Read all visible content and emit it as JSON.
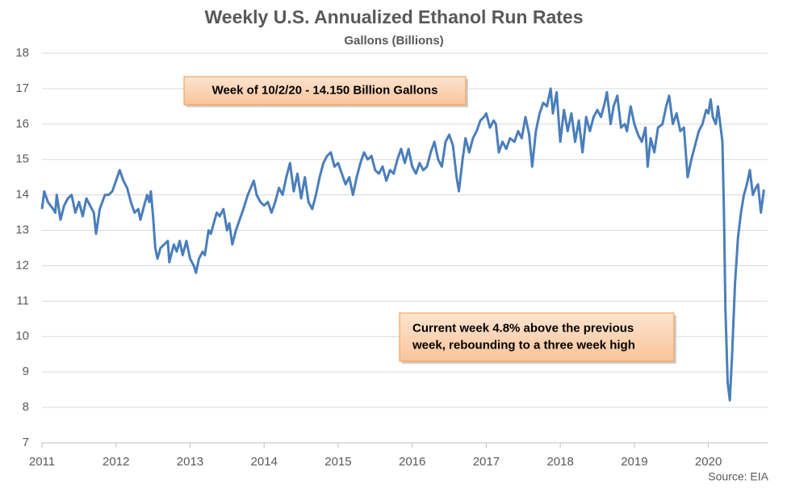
{
  "chart_data": {
    "type": "line",
    "title": "Weekly U.S. Annualized Ethanol Run Rates",
    "subtitle": "Gallons (Billions)",
    "source": "Source: EIA",
    "annotations": [
      [
        "Week of 10/2/20 - 14.150 Billion Gallons"
      ],
      [
        "Current week 4.8% above the previous",
        "week, rebounding to a three week high"
      ]
    ],
    "color": "#4a7ebb",
    "grid": true,
    "xlim": [
      2011,
      2020.8
    ],
    "xticks": [
      2011,
      2012,
      2013,
      2014,
      2015,
      2016,
      2017,
      2018,
      2019,
      2020
    ],
    "ylim": [
      7,
      18
    ],
    "yticks": [
      7,
      8,
      9,
      10,
      11,
      12,
      13,
      14,
      15,
      16,
      17,
      18
    ],
    "x": [
      2011.0,
      2011.03,
      2011.08,
      2011.15,
      2011.18,
      2011.2,
      2011.25,
      2011.3,
      2011.35,
      2011.4,
      2011.45,
      2011.5,
      2011.55,
      2011.6,
      2011.65,
      2011.7,
      2011.73,
      2011.78,
      2011.85,
      2011.9,
      2011.95,
      2012.0,
      2012.05,
      2012.1,
      2012.15,
      2012.2,
      2012.25,
      2012.3,
      2012.33,
      2012.38,
      2012.42,
      2012.45,
      2012.47,
      2012.5,
      2012.53,
      2012.56,
      2012.6,
      2012.65,
      2012.7,
      2012.72,
      2012.78,
      2012.82,
      2012.86,
      2012.9,
      2012.95,
      2013.0,
      2013.05,
      2013.08,
      2013.12,
      2013.17,
      2013.2,
      2013.25,
      2013.28,
      2013.32,
      2013.36,
      2013.4,
      2013.45,
      2013.5,
      2013.53,
      2013.57,
      2013.62,
      2013.67,
      2013.72,
      2013.78,
      2013.82,
      2013.86,
      2013.9,
      2013.95,
      2014.0,
      2014.05,
      2014.1,
      2014.15,
      2014.2,
      2014.25,
      2014.3,
      2014.35,
      2014.4,
      2014.45,
      2014.5,
      2014.55,
      2014.6,
      2014.65,
      2014.7,
      2014.75,
      2014.8,
      2014.85,
      2014.9,
      2014.95,
      2015.0,
      2015.05,
      2015.1,
      2015.15,
      2015.2,
      2015.25,
      2015.3,
      2015.35,
      2015.4,
      2015.45,
      2015.5,
      2015.55,
      2015.6,
      2015.65,
      2015.7,
      2015.75,
      2015.8,
      2015.85,
      2015.9,
      2015.95,
      2016.0,
      2016.05,
      2016.1,
      2016.15,
      2016.2,
      2016.25,
      2016.3,
      2016.35,
      2016.4,
      2016.45,
      2016.5,
      2016.55,
      2016.6,
      2016.63,
      2016.68,
      2016.72,
      2016.77,
      2016.82,
      2016.87,
      2016.92,
      2016.97,
      2017.0,
      2017.05,
      2017.1,
      2017.13,
      2017.17,
      2017.22,
      2017.27,
      2017.32,
      2017.38,
      2017.43,
      2017.48,
      2017.53,
      2017.58,
      2017.62,
      2017.67,
      2017.72,
      2017.77,
      2017.82,
      2017.87,
      2017.9,
      2017.95,
      2018.0,
      2018.05,
      2018.1,
      2018.15,
      2018.2,
      2018.25,
      2018.3,
      2018.35,
      2018.4,
      2018.45,
      2018.5,
      2018.55,
      2018.6,
      2018.63,
      2018.68,
      2018.72,
      2018.77,
      2018.82,
      2018.87,
      2018.9,
      2018.95,
      2019.0,
      2019.05,
      2019.1,
      2019.15,
      2019.18,
      2019.22,
      2019.27,
      2019.32,
      2019.38,
      2019.43,
      2019.47,
      2019.52,
      2019.57,
      2019.62,
      2019.67,
      2019.72,
      2019.77,
      2019.82,
      2019.87,
      2019.92,
      2019.97,
      2020.0,
      2020.03,
      2020.06,
      2020.1,
      2020.13,
      2020.16,
      2020.19,
      2020.21,
      2020.23,
      2020.26,
      2020.29,
      2020.32,
      2020.36,
      2020.4,
      2020.44,
      2020.48,
      2020.52,
      2020.56,
      2020.6,
      2020.64,
      2020.67,
      2020.71,
      2020.75
    ],
    "series": [
      {
        "name": "Run Rate",
        "values": [
          13.6,
          14.1,
          13.8,
          13.6,
          13.5,
          14.0,
          13.3,
          13.7,
          13.9,
          14.0,
          13.5,
          13.8,
          13.4,
          13.9,
          13.7,
          13.5,
          12.9,
          13.6,
          14.0,
          14.0,
          14.1,
          14.4,
          14.7,
          14.4,
          14.2,
          13.8,
          13.5,
          13.6,
          13.3,
          13.7,
          14.0,
          13.8,
          14.1,
          13.4,
          12.5,
          12.2,
          12.5,
          12.6,
          12.7,
          12.1,
          12.6,
          12.4,
          12.7,
          12.3,
          12.7,
          12.2,
          12.0,
          11.8,
          12.2,
          12.4,
          12.3,
          13.0,
          12.9,
          13.2,
          13.5,
          13.4,
          13.6,
          13.0,
          13.2,
          12.6,
          13.0,
          13.3,
          13.6,
          14.0,
          14.2,
          14.4,
          14.0,
          13.8,
          13.7,
          13.8,
          13.5,
          13.8,
          14.2,
          14.0,
          14.5,
          14.9,
          14.1,
          14.6,
          13.9,
          14.5,
          13.8,
          13.6,
          14.0,
          14.5,
          14.9,
          15.1,
          15.2,
          14.8,
          14.9,
          14.6,
          14.3,
          14.5,
          14.0,
          14.5,
          14.9,
          15.2,
          15.0,
          15.1,
          14.7,
          14.6,
          14.8,
          14.4,
          14.7,
          14.6,
          15.0,
          15.3,
          14.9,
          15.3,
          14.8,
          14.6,
          14.9,
          14.7,
          14.8,
          15.2,
          15.5,
          15.0,
          14.8,
          15.5,
          15.7,
          15.4,
          14.5,
          14.1,
          15.0,
          15.6,
          15.2,
          15.6,
          15.8,
          16.1,
          16.2,
          16.3,
          15.9,
          16.1,
          16.0,
          15.2,
          15.5,
          15.3,
          15.6,
          15.5,
          15.8,
          15.6,
          16.2,
          15.7,
          14.8,
          15.8,
          16.3,
          16.6,
          16.5,
          17.0,
          16.3,
          16.9,
          15.5,
          16.4,
          15.8,
          16.3,
          15.5,
          16.1,
          15.2,
          16.2,
          15.8,
          16.2,
          16.4,
          16.2,
          16.6,
          16.9,
          16.0,
          16.5,
          16.8,
          15.9,
          16.0,
          15.8,
          16.5,
          16.0,
          15.7,
          15.5,
          15.9,
          14.8,
          15.6,
          15.2,
          15.9,
          16.0,
          16.5,
          16.8,
          16.0,
          16.3,
          15.8,
          15.9,
          14.5,
          15.0,
          15.4,
          15.8,
          16.0,
          16.4,
          16.3,
          16.7,
          16.2,
          16.0,
          16.5,
          16.0,
          15.5,
          13.5,
          10.8,
          8.7,
          8.2,
          9.5,
          11.5,
          12.8,
          13.5,
          14.0,
          14.3,
          14.7,
          14.0,
          14.2,
          14.3,
          13.5,
          14.15
        ]
      }
    ]
  }
}
